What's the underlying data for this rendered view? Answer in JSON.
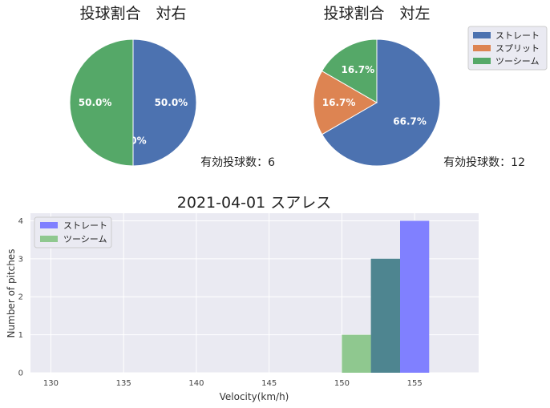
{
  "colors": {
    "blue": "#4C72B0",
    "orange": "#DD8452",
    "green": "#55A868",
    "hist_blue": "#8080FF",
    "hist_green": "#8FC88F",
    "overlap": "#4E8590",
    "panel_bg": "#EAEAF2"
  },
  "chart_data": [
    {
      "type": "pie",
      "title": "投球割合　対右",
      "categories": [
        "ストレート",
        "スプリット",
        "ツーシーム"
      ],
      "values": [
        50.0,
        0.0,
        50.0
      ],
      "labels": [
        "50.0%",
        "0.0%",
        "50.0%"
      ],
      "note": "有効投球数：6"
    },
    {
      "type": "pie",
      "title": "投球割合　対左",
      "categories": [
        "ストレート",
        "スプリット",
        "ツーシーム"
      ],
      "values": [
        66.7,
        16.7,
        16.7
      ],
      "labels": [
        "66.7%",
        "16.7%",
        "16.7%"
      ],
      "note": "有効投球数：12",
      "legend": {
        "entries": [
          "ストレート",
          "スプリット",
          "ツーシーム"
        ],
        "placement": "upper right, outside"
      }
    },
    {
      "type": "bar",
      "title": "2021-04-01 スアレス",
      "xlabel": "Velocity(km/h)",
      "ylabel": "Number of pitches",
      "xlim": [
        128.6,
        159.4
      ],
      "ylim": [
        0,
        4.2
      ],
      "xticks": [
        "130",
        "135",
        "140",
        "145",
        "150",
        "155"
      ],
      "yticks": [
        "0",
        "1",
        "2",
        "3",
        "4"
      ],
      "bin_width": 2,
      "series": [
        {
          "name": "ストレート",
          "bins": [
            {
              "start": 152,
              "count": 3
            },
            {
              "start": 154,
              "count": 4
            }
          ]
        },
        {
          "name": "ツーシーム",
          "bins": [
            {
              "start": 150,
              "count": 1
            },
            {
              "start": 152,
              "count": 3
            }
          ]
        }
      ],
      "legend": {
        "entries": [
          "ストレート",
          "ツーシーム"
        ],
        "placement": "upper left"
      },
      "grid": true
    }
  ]
}
